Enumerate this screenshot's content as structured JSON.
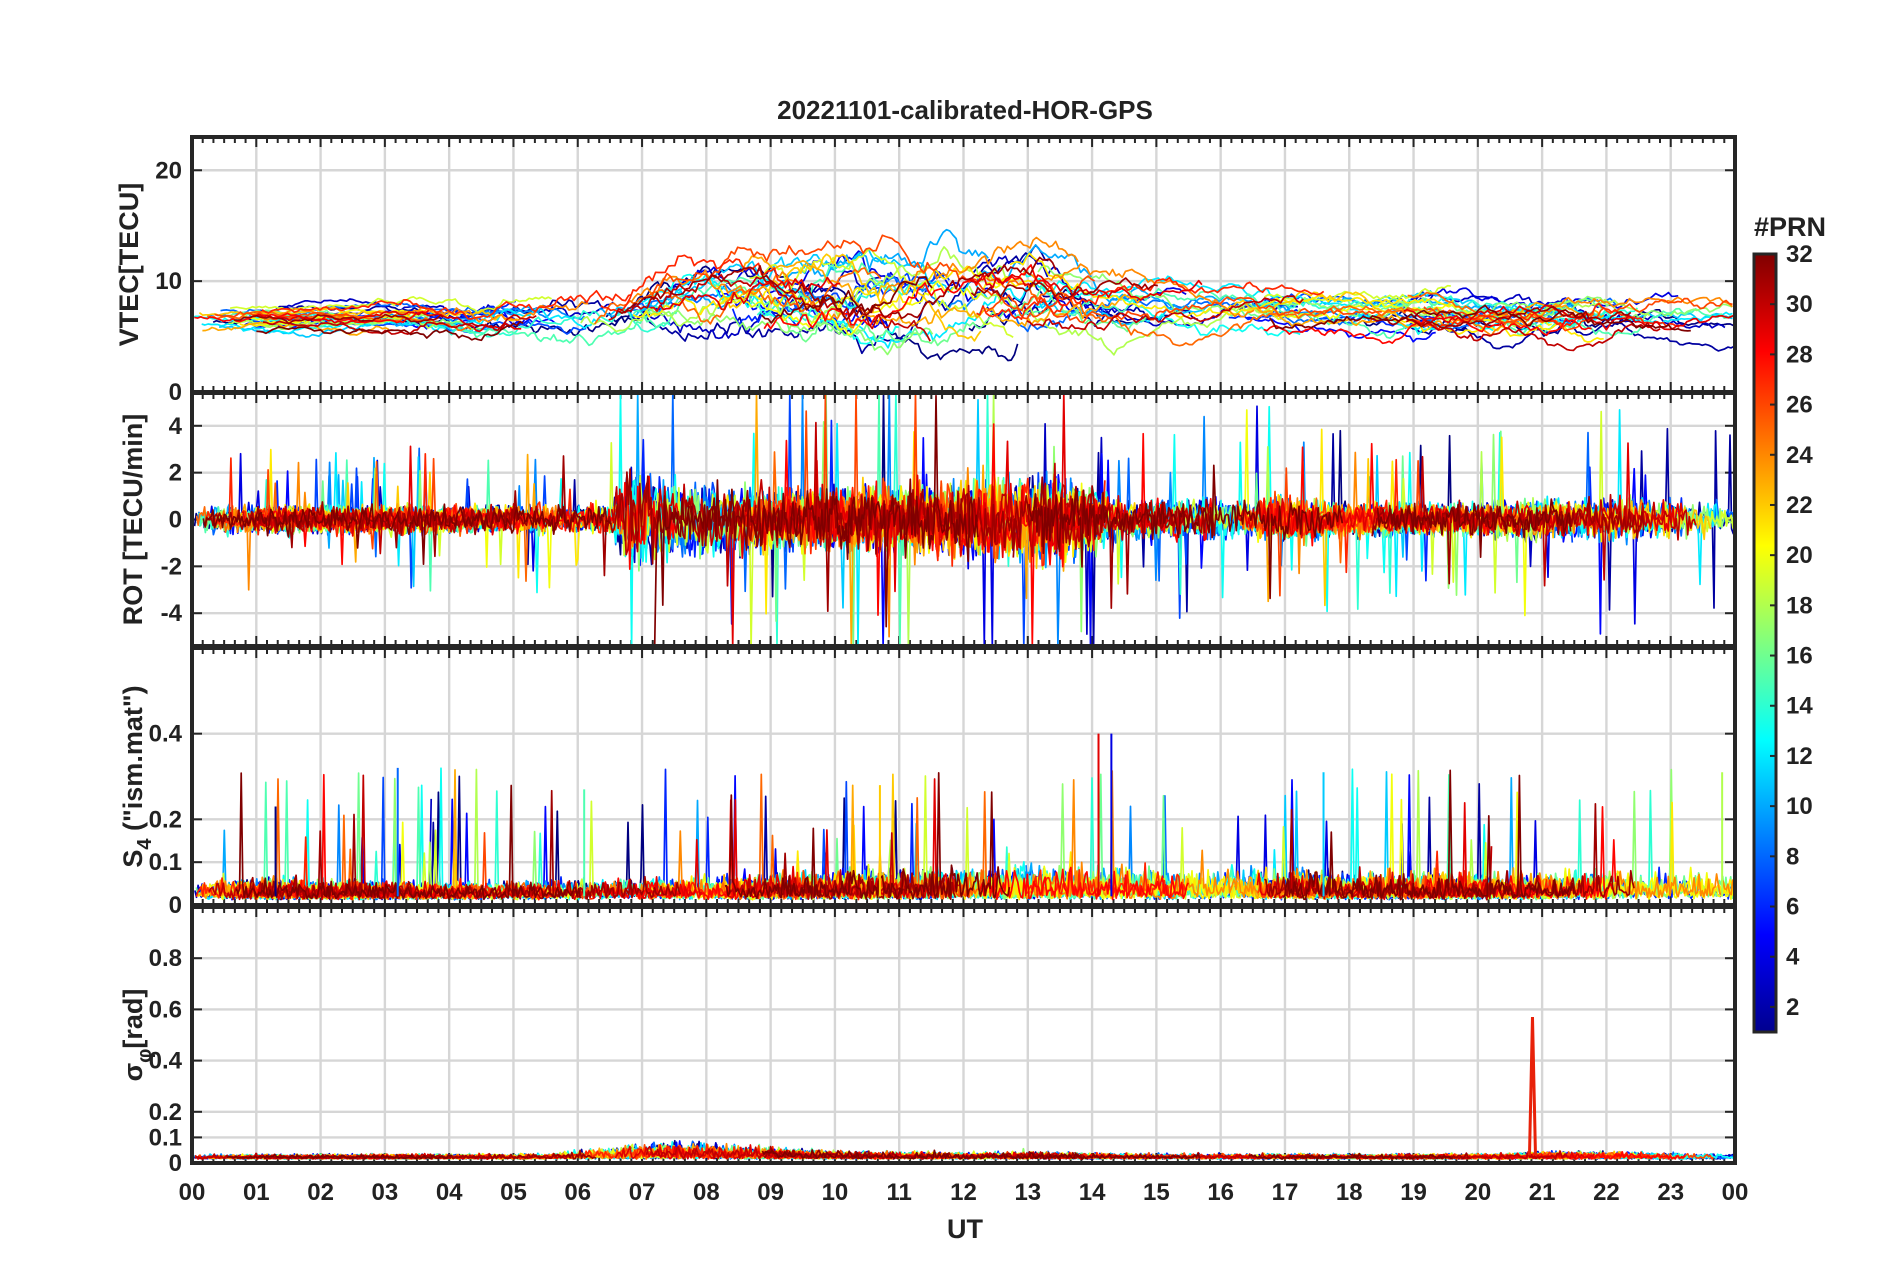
{
  "chart_data": {
    "type": "line",
    "title": "20221101-calibrated-HOR-GPS",
    "xlabel": "UT",
    "x_tick_labels": [
      "00",
      "01",
      "02",
      "03",
      "04",
      "05",
      "06",
      "07",
      "08",
      "09",
      "10",
      "11",
      "12",
      "13",
      "14",
      "15",
      "16",
      "17",
      "18",
      "19",
      "20",
      "21",
      "22",
      "23",
      "00"
    ],
    "x_range_hours": [
      0,
      24
    ],
    "colorbar": {
      "label": "#PRN",
      "range": [
        1,
        32
      ],
      "tick_labels": [
        "2",
        "4",
        "6",
        "8",
        "10",
        "12",
        "14",
        "16",
        "18",
        "20",
        "22",
        "24",
        "26",
        "28",
        "30",
        "32"
      ],
      "colormap": "jet"
    },
    "prn_count": 32,
    "panels": [
      {
        "id": "vtec",
        "ylabel": "VTEC[TECU]",
        "ylim": [
          0,
          23
        ],
        "y_ticks": [
          0,
          10,
          20
        ],
        "y_tick_labels": [
          "0",
          "10",
          "20"
        ],
        "baseline": 6.5,
        "activity": [
          [
            0,
            0.7
          ],
          [
            2.5,
            0.6
          ],
          [
            6.5,
            1.6
          ],
          [
            9.5,
            2.4
          ],
          [
            13,
            2.2
          ],
          [
            15,
            1.3
          ],
          [
            18,
            1.1
          ],
          [
            22,
            1.4
          ],
          [
            24,
            0.8
          ]
        ],
        "enhancement": [
          [
            0,
            0
          ],
          [
            6.5,
            0.5
          ],
          [
            8,
            4
          ],
          [
            10,
            4
          ],
          [
            13,
            4.5
          ],
          [
            14,
            3
          ],
          [
            17,
            1.5
          ],
          [
            20,
            0.5
          ],
          [
            22,
            1
          ],
          [
            24,
            0
          ]
        ]
      },
      {
        "id": "rot",
        "ylabel": "ROT [TECU/min]",
        "ylim": [
          -5.4,
          5.4
        ],
        "y_ticks": [
          -4,
          -2,
          0,
          2,
          4
        ],
        "y_tick_labels": [
          "-4",
          "-2",
          "0",
          "2",
          "4"
        ],
        "activity": [
          [
            0,
            0.55
          ],
          [
            6.5,
            0.6
          ],
          [
            6.8,
            2.2
          ],
          [
            7.5,
            1.5
          ],
          [
            9.5,
            1.2
          ],
          [
            12,
            1.6
          ],
          [
            13.5,
            2.0
          ],
          [
            14.5,
            0.8
          ],
          [
            17,
            0.9
          ],
          [
            19,
            0.6
          ],
          [
            22,
            0.9
          ],
          [
            24,
            0.7
          ]
        ]
      },
      {
        "id": "s4",
        "ylabel": "S4 (\"ism.mat\")",
        "ylabel_main": "S",
        "ylabel_sub": "4",
        "ylabel_rest": " (\"ism.mat\")",
        "ylim": [
          0,
          0.6
        ],
        "y_ticks": [
          0,
          0.1,
          0.2,
          0.4
        ],
        "y_tick_labels": [
          "0",
          "0.1",
          "0.2",
          "0.4"
        ],
        "activity": [
          [
            0,
            0.07
          ],
          [
            4,
            0.05
          ],
          [
            6,
            0.06
          ],
          [
            8,
            0.07
          ],
          [
            10,
            0.09
          ],
          [
            14,
            0.11
          ],
          [
            17,
            0.09
          ],
          [
            20,
            0.08
          ],
          [
            23,
            0.1
          ],
          [
            24,
            0.09
          ]
        ],
        "peak_values": [
          0.23,
          0.32,
          0.27,
          0.28,
          0.4,
          0.4,
          0.31,
          0.31
        ]
      },
      {
        "id": "sigma",
        "ylabel": "σφ[rad]",
        "ylabel_main": "σ",
        "ylabel_sub": "φ",
        "ylabel_rest": "[rad]",
        "ylim": [
          0,
          1
        ],
        "y_ticks": [
          0,
          0.1,
          0.2,
          0.4,
          0.6,
          0.8
        ],
        "y_tick_labels": [
          "0",
          "0.1",
          "0.2",
          "0.4",
          "0.6",
          "0.8"
        ],
        "activity": [
          [
            0,
            0.025
          ],
          [
            5.5,
            0.03
          ],
          [
            6.5,
            0.08
          ],
          [
            7.5,
            0.12
          ],
          [
            8.5,
            0.09
          ],
          [
            10,
            0.05
          ],
          [
            12,
            0.04
          ],
          [
            13,
            0.05
          ],
          [
            14,
            0.035
          ],
          [
            17,
            0.03
          ],
          [
            20,
            0.03
          ],
          [
            21,
            0.045
          ],
          [
            22,
            0.05
          ],
          [
            24,
            0.03
          ]
        ],
        "spike": {
          "time": 20.85,
          "value": 0.57
        }
      }
    ]
  }
}
